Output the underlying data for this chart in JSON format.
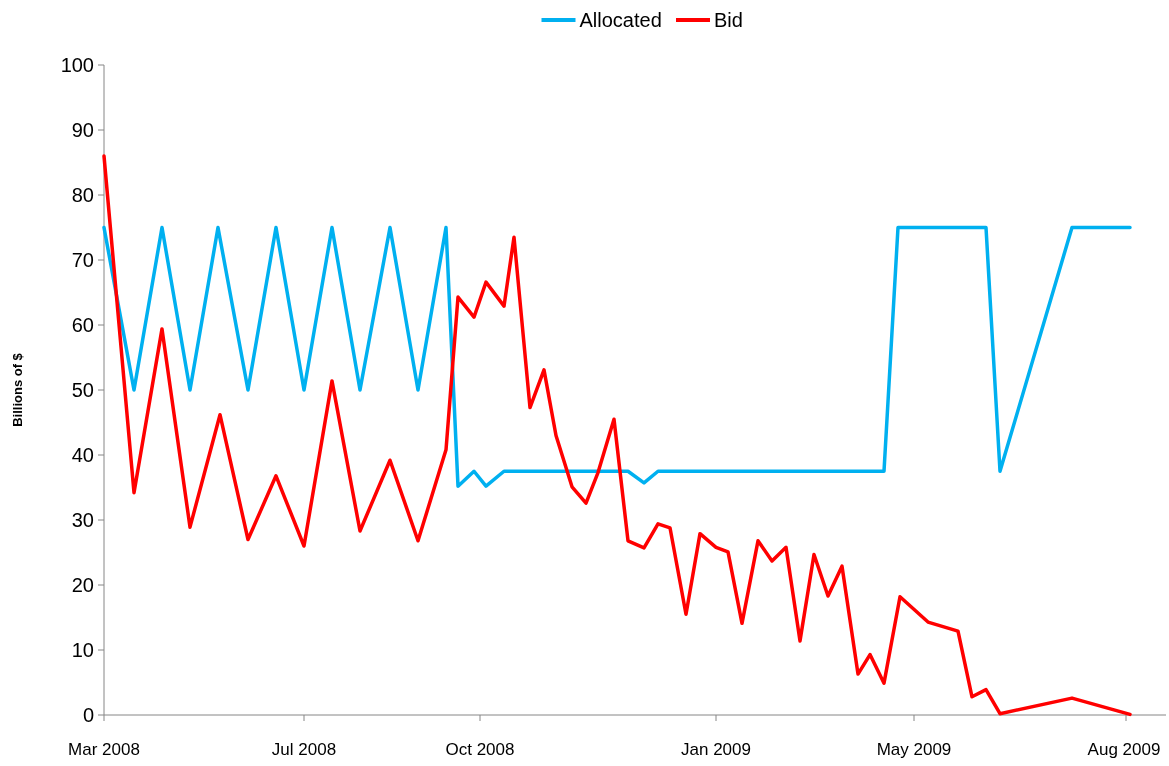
{
  "chart_data": {
    "type": "line",
    "ylabel": "Billions of $",
    "xlim": [
      "2008-03-27",
      "2009-09-09"
    ],
    "xticks": [
      {
        "value": "2008-03-27",
        "label": "Mar 2008"
      },
      {
        "value": "2008-07-05",
        "label": "Jul 2008"
      },
      {
        "value": "2008-10-01",
        "label": "Oct 2008"
      },
      {
        "value": "2009-01-27",
        "label": "Jan 2009"
      },
      {
        "value": "2009-05-06",
        "label": "May 2009"
      },
      {
        "value": "2009-08-20",
        "label": "Aug 2009"
      }
    ],
    "ylim": [
      0,
      100
    ],
    "yticks": [
      0,
      10,
      20,
      30,
      40,
      50,
      60,
      70,
      80,
      90,
      100
    ],
    "grid": false,
    "legend": "top",
    "marker": "none",
    "line_style": "solid",
    "series": [
      {
        "name": "Allocated",
        "color": "#00b0f0",
        "x": [
          "2008-03-27",
          "2008-04-11",
          "2008-04-25",
          "2008-05-09",
          "2008-05-23",
          "2008-06-07",
          "2008-06-21",
          "2008-07-05",
          "2008-07-19",
          "2008-08-02",
          "2008-08-17",
          "2008-08-31",
          "2008-09-14",
          "2008-09-20",
          "2008-09-28",
          "2008-10-04",
          "2008-10-13",
          "2008-12-14",
          "2008-12-22",
          "2008-12-29",
          "2009-04-21",
          "2009-04-28",
          "2009-06-11",
          "2009-06-18",
          "2009-07-24",
          "2009-08-22"
        ],
        "values": [
          75,
          50,
          75,
          50,
          75,
          50,
          75,
          50,
          75,
          50,
          75,
          50,
          75,
          35.2,
          37.5,
          35.2,
          37.5,
          37.5,
          35.7,
          37.5,
          37.5,
          75,
          75,
          37.5,
          75,
          75
        ]
      },
      {
        "name": "Bid",
        "color": "#ff0000",
        "x": [
          "2008-03-27",
          "2008-04-11",
          "2008-04-25",
          "2008-05-09",
          "2008-05-24",
          "2008-06-07",
          "2008-06-21",
          "2008-07-05",
          "2008-07-19",
          "2008-08-02",
          "2008-08-17",
          "2008-08-31",
          "2008-09-14",
          "2008-09-20",
          "2008-09-28",
          "2008-10-04",
          "2008-10-13",
          "2008-10-18",
          "2008-10-26",
          "2008-11-02",
          "2008-11-08",
          "2008-11-16",
          "2008-11-23",
          "2008-11-29",
          "2008-12-07",
          "2008-12-14",
          "2008-12-22",
          "2008-12-29",
          "2009-01-04",
          "2009-01-12",
          "2009-01-19",
          "2009-01-27",
          "2009-02-02",
          "2009-02-09",
          "2009-02-17",
          "2009-02-24",
          "2009-03-03",
          "2009-03-10",
          "2009-03-17",
          "2009-03-24",
          "2009-03-31",
          "2009-04-08",
          "2009-04-14",
          "2009-04-21",
          "2009-04-29",
          "2009-05-13",
          "2009-05-28",
          "2009-06-04",
          "2009-06-11",
          "2009-06-18",
          "2009-07-24",
          "2009-08-22"
        ],
        "values": [
          86,
          34.2,
          59.4,
          28.9,
          46.2,
          27,
          36.8,
          26,
          51.4,
          28.3,
          39.2,
          26.8,
          40.8,
          64.3,
          61.2,
          66.6,
          62.9,
          73.5,
          47.3,
          53.1,
          43,
          35.1,
          32.6,
          37.3,
          45.5,
          26.8,
          25.7,
          29.4,
          28.8,
          15.5,
          27.9,
          25.8,
          25.1,
          14.1,
          26.8,
          23.7,
          25.8,
          11.4,
          24.7,
          18.3,
          22.9,
          6.3,
          9.3,
          4.9,
          18.2,
          14.3,
          12.9,
          2.8,
          3.9,
          0.2,
          2.6,
          0.1
        ]
      }
    ]
  }
}
